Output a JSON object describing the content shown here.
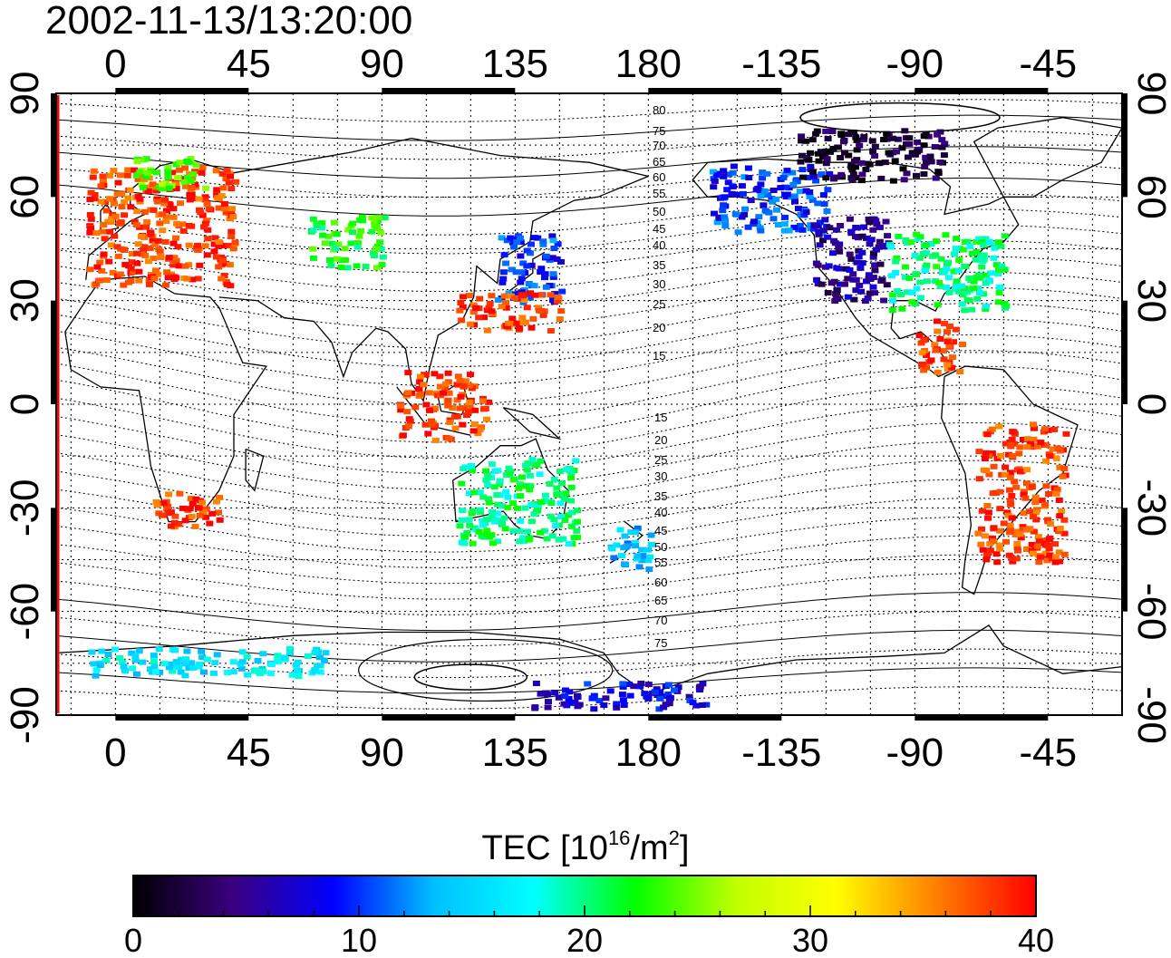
{
  "title": "2002-11-13/13:20:00",
  "colorbar": {
    "label_main": "TEC  [10",
    "label_exp": "16",
    "label_mid": "/m",
    "label_exp2": "2",
    "label_end": "]",
    "ticks": [
      "0",
      "10",
      "20",
      "30",
      "40"
    ],
    "min": 0,
    "max": 40,
    "stops": [
      "#000000",
      "#3a0080",
      "#0000ff",
      "#00c0ff",
      "#00ffff",
      "#00ff00",
      "#c0ff00",
      "#ffff00",
      "#ff8000",
      "#ff0000"
    ]
  },
  "axes": {
    "lon_ticks": [
      "0",
      "45",
      "90",
      "135",
      "180",
      "-135",
      "-90",
      "-45"
    ],
    "lat_ticks": [
      "90",
      "60",
      "30",
      "0",
      "-30",
      "-60",
      "-90"
    ],
    "lon_values": [
      0,
      45,
      90,
      135,
      180,
      225,
      270,
      315
    ],
    "lat_values": [
      90,
      60,
      30,
      0,
      -30,
      -60,
      -90
    ],
    "lon_range": [
      -20,
      340
    ],
    "lat_range": [
      -90,
      90
    ]
  },
  "contour_labels": {
    "north": [
      "80",
      "75",
      "70",
      "65",
      "60",
      "55",
      "50",
      "45",
      "40",
      "35",
      "30",
      "25",
      "20",
      "15"
    ],
    "south": [
      "15",
      "20",
      "25",
      "30",
      "35",
      "40",
      "45",
      "50",
      "55",
      "60",
      "65",
      "70",
      "75"
    ]
  },
  "chart_data": {
    "type": "heatmap",
    "title": "2002-11-13/13:20:00",
    "colorbar_label": "TEC [10^16/m^2]",
    "value_range": [
      0,
      40
    ],
    "grid": true,
    "regions": [
      {
        "lon_min": -10,
        "lon_max": 40,
        "lat_min": 35,
        "lat_max": 70,
        "tec": 38
      },
      {
        "lon_min": 5,
        "lon_max": 30,
        "lat_min": 63,
        "lat_max": 72,
        "tec": 24
      },
      {
        "lon_min": 65,
        "lon_max": 90,
        "lat_min": 40,
        "lat_max": 55,
        "tec": 22
      },
      {
        "lon_min": 128,
        "lon_max": 150,
        "lat_min": 30,
        "lat_max": 50,
        "tec": 10
      },
      {
        "lon_min": 115,
        "lon_max": 150,
        "lat_min": 22,
        "lat_max": 33,
        "tec": 38
      },
      {
        "lon_min": 95,
        "lon_max": 125,
        "lat_min": -10,
        "lat_max": 10,
        "tec": 38
      },
      {
        "lon_min": 115,
        "lon_max": 155,
        "lat_min": -40,
        "lat_max": -15,
        "tec": 20
      },
      {
        "lon_min": 165,
        "lon_max": 180,
        "lat_min": -47,
        "lat_max": -35,
        "tec": 14
      },
      {
        "lon_min": 10,
        "lon_max": 35,
        "lat_min": -35,
        "lat_max": -25,
        "tec": 38
      },
      {
        "lon_min": 200,
        "lon_max": 240,
        "lat_min": 50,
        "lat_max": 70,
        "tec": 10
      },
      {
        "lon_min": 235,
        "lon_max": 260,
        "lat_min": 30,
        "lat_max": 55,
        "tec": 5
      },
      {
        "lon_min": 260,
        "lon_max": 300,
        "lat_min": 28,
        "lat_max": 50,
        "tec": 20
      },
      {
        "lon_min": 270,
        "lon_max": 285,
        "lat_min": 10,
        "lat_max": 25,
        "tec": 38
      },
      {
        "lon_min": 290,
        "lon_max": 320,
        "lat_min": -45,
        "lat_max": -5,
        "tec": 38
      },
      {
        "lon_min": 230,
        "lon_max": 280,
        "lat_min": 65,
        "lat_max": 80,
        "tec": 2
      },
      {
        "lon_min": -10,
        "lon_max": 70,
        "lat_min": -78,
        "lat_max": -70,
        "tec": 16
      },
      {
        "lon_min": 140,
        "lon_max": 200,
        "lat_min": -88,
        "lat_max": -80,
        "tec": 8
      }
    ]
  }
}
